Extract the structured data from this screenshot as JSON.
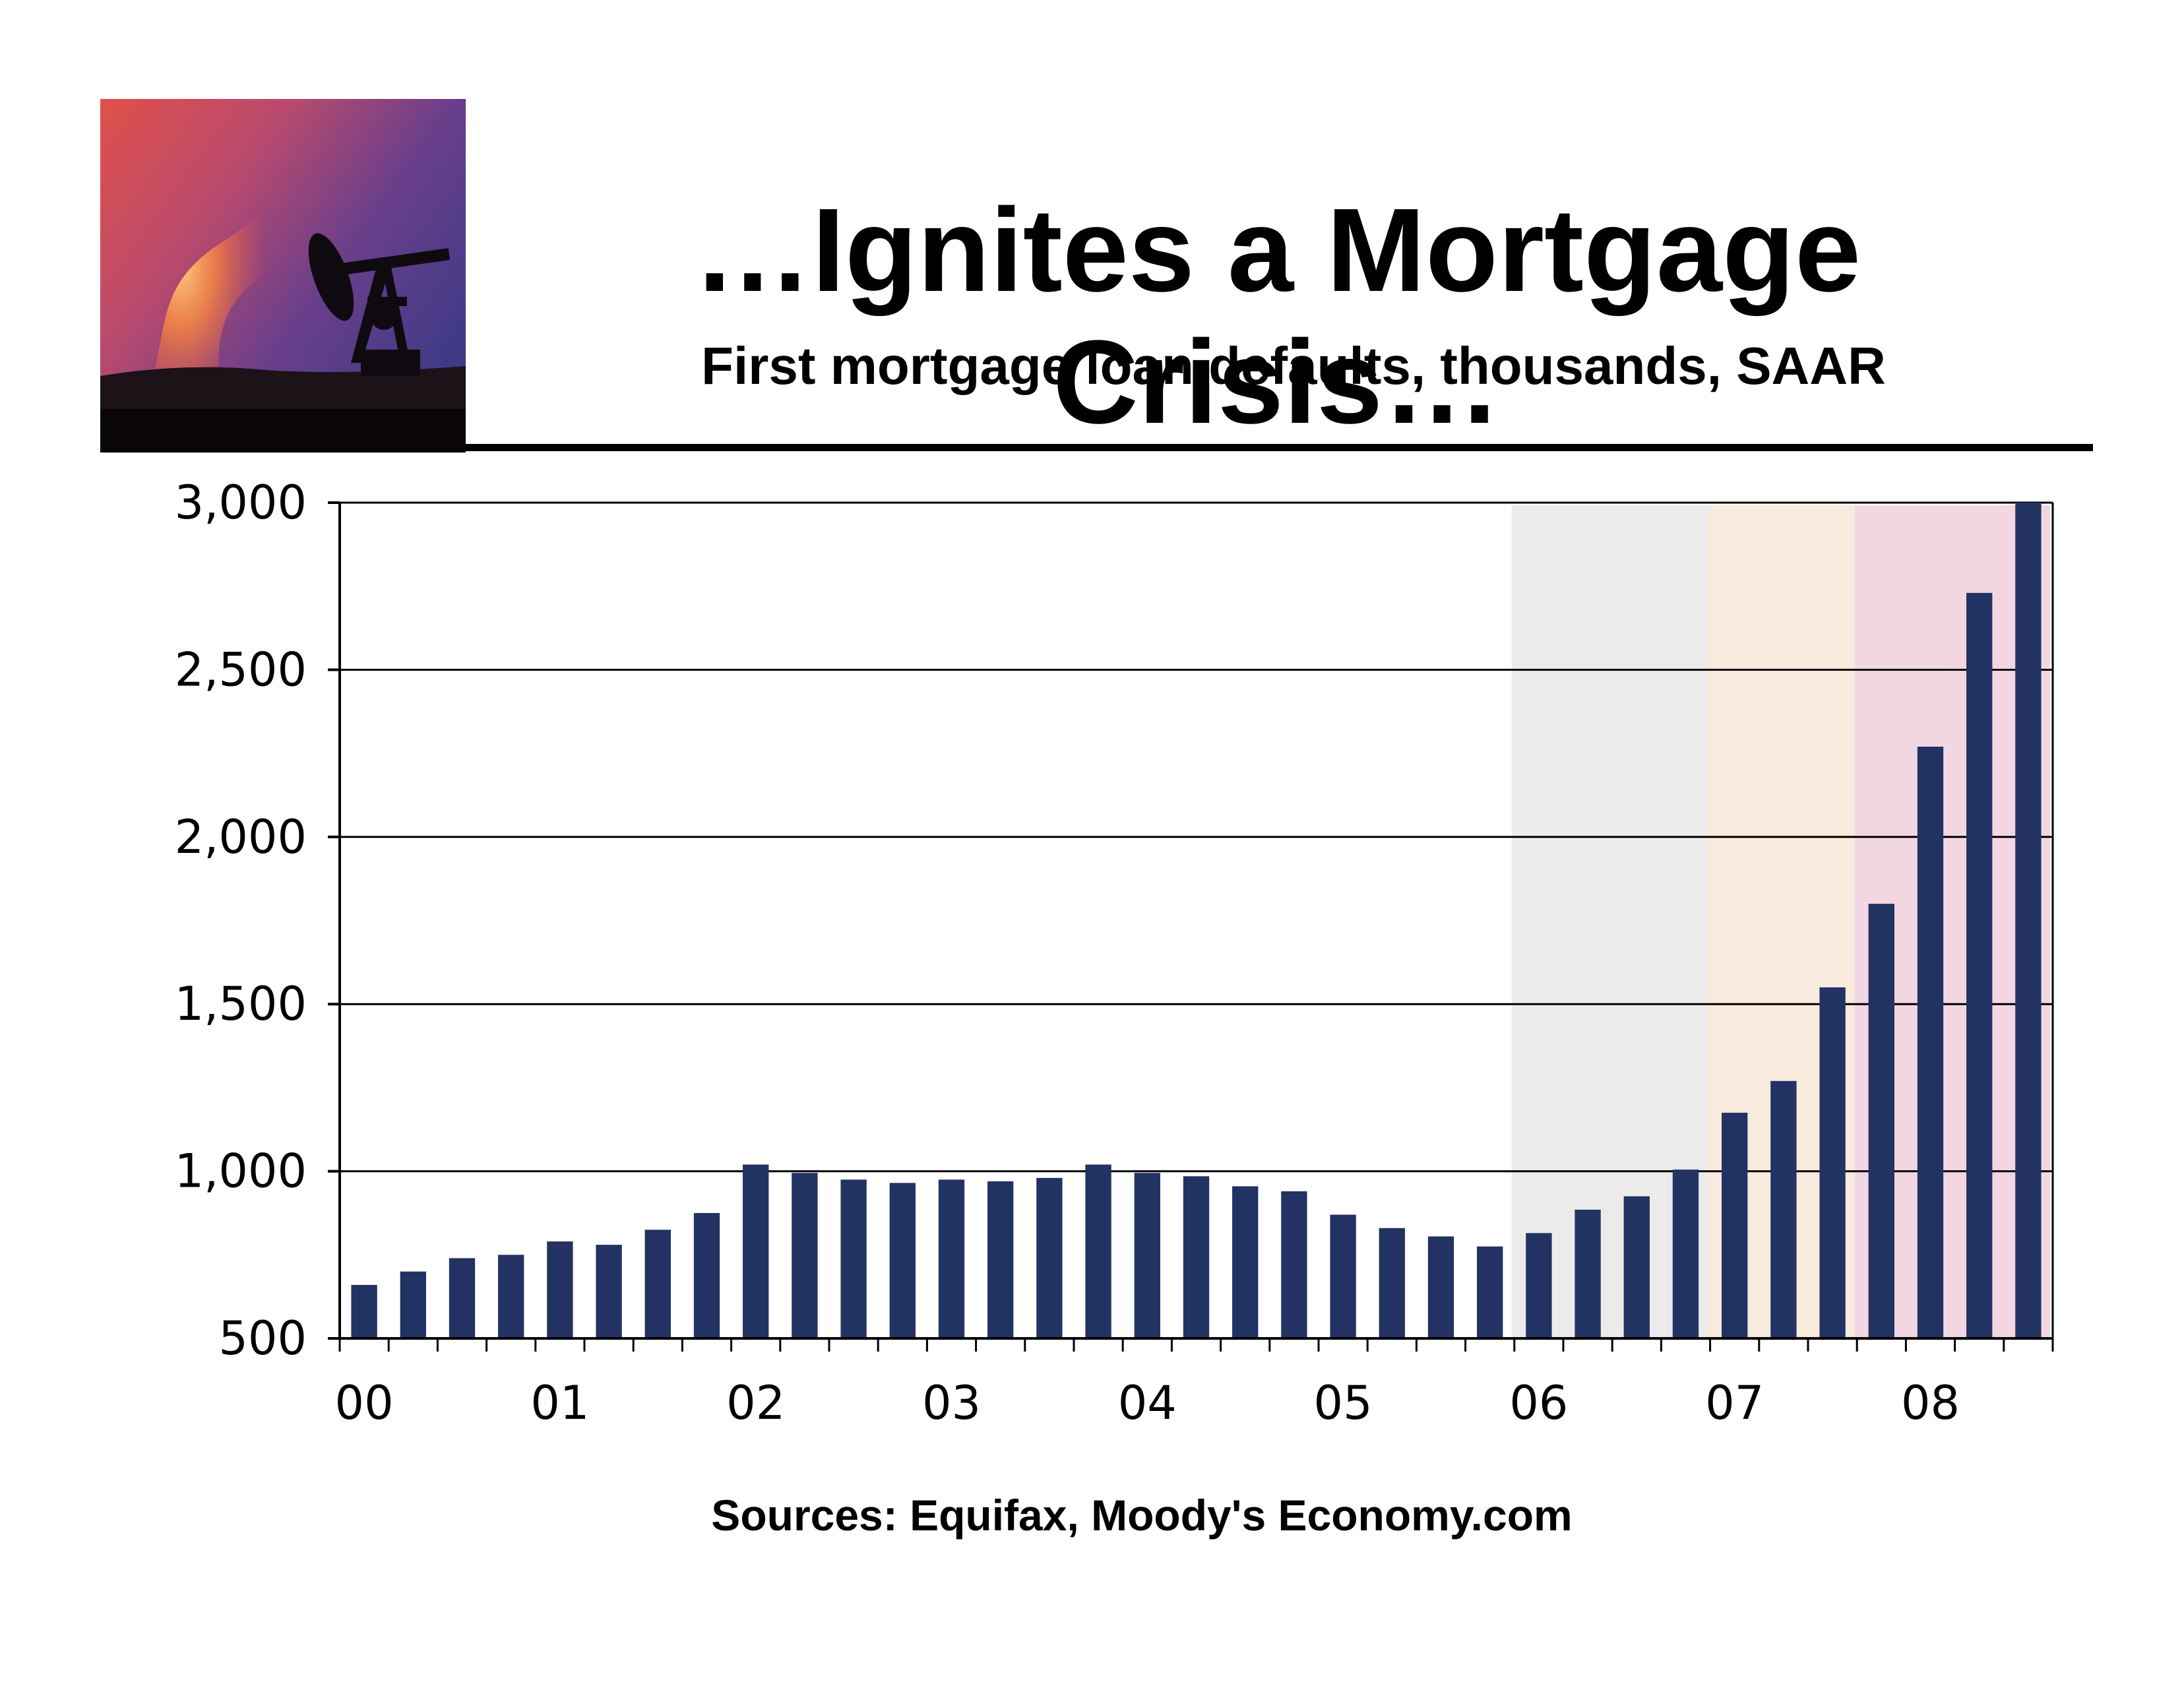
{
  "slide": {
    "title": "…Ignites a Mortgage Crisis…",
    "subtitle": "First mortgage loan defaults, thousands, SAAR",
    "source": "Sources: Equifax, Moody's Economy.com",
    "photo_icon": "oil-pump-sunset-icon"
  },
  "colors": {
    "bar": "#223263",
    "shade_2006": "#e4e4e4",
    "shade_2007": "#f6e3d2",
    "shade_2008": "#edc9d8",
    "gridline": "#000000"
  },
  "chart_data": {
    "type": "bar",
    "title": "First mortgage loan defaults, thousands, SAAR",
    "xlabel": "",
    "ylabel": "",
    "ylim": [
      500,
      3000
    ],
    "yticks": [
      500,
      1000,
      1500,
      2000,
      2500,
      3000
    ],
    "ytick_labels": [
      "500",
      "1,000",
      "1,500",
      "2,000",
      "2,500",
      "3,000"
    ],
    "grid": true,
    "year_labels": [
      "00",
      "01",
      "02",
      "03",
      "04",
      "05",
      "06",
      "07",
      "08"
    ],
    "categories": [
      "00 Q1",
      "00 Q2",
      "00 Q3",
      "00 Q4",
      "01 Q1",
      "01 Q2",
      "01 Q3",
      "01 Q4",
      "02 Q1",
      "02 Q2",
      "02 Q3",
      "02 Q4",
      "03 Q1",
      "03 Q2",
      "03 Q3",
      "03 Q4",
      "04 Q1",
      "04 Q2",
      "04 Q3",
      "04 Q4",
      "05 Q1",
      "05 Q2",
      "05 Q3",
      "05 Q4",
      "06 Q1",
      "06 Q2",
      "06 Q3",
      "06 Q4",
      "07 Q1",
      "07 Q2",
      "07 Q3",
      "07 Q4",
      "08 Q1",
      "08 Q2",
      "08 Q3"
    ],
    "values": [
      660,
      700,
      740,
      750,
      790,
      780,
      825,
      875,
      1020,
      995,
      975,
      965,
      975,
      970,
      980,
      1020,
      995,
      985,
      955,
      940,
      870,
      830,
      805,
      775,
      815,
      885,
      925,
      1005,
      1175,
      1270,
      1550,
      1800,
      2270,
      2730,
      3000
    ],
    "shaded_periods": [
      {
        "name": "2006",
        "start_index": 24,
        "end_index": 27
      },
      {
        "name": "2007",
        "start_index": 28,
        "end_index": 30
      },
      {
        "name": "2008",
        "start_index": 31,
        "end_index": 34
      }
    ]
  }
}
